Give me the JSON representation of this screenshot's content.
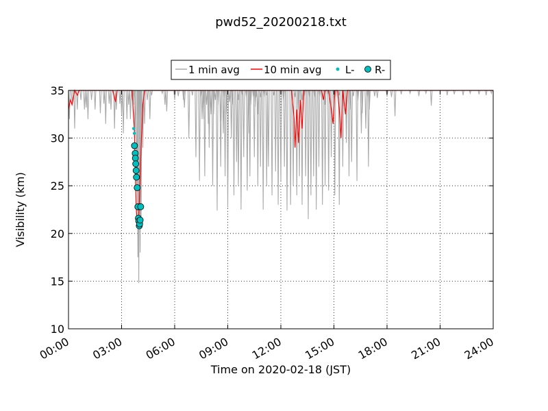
{
  "chart_data": {
    "type": "line",
    "title": "pwd52_20200218.txt",
    "xlabel": "Time on 2020-02-18 (JST)",
    "ylabel": "Visibility (km)",
    "xlim_hours": [
      0,
      24
    ],
    "ylim": [
      10,
      35
    ],
    "x_ticks": [
      "00:00",
      "03:00",
      "06:00",
      "09:00",
      "12:00",
      "15:00",
      "18:00",
      "21:00",
      "24:00"
    ],
    "x_tick_hours": [
      0,
      3,
      6,
      9,
      12,
      15,
      18,
      21,
      24
    ],
    "y_ticks": [
      10,
      15,
      20,
      25,
      30,
      35
    ],
    "grid": true,
    "legend_position": "top-center",
    "legend": [
      "1 min avg",
      "10 min avg",
      "L-",
      "R-"
    ],
    "colors": {
      "one_min": "#a9a9a9",
      "ten_min": "#ff0000",
      "L": "#00bfbf",
      "R": "#00bfbf"
    },
    "series": [
      {
        "name": "1 min avg",
        "note": "dips from 35 km ceiling (hour, minimum visibility km)",
        "dips": [
          [
            0.05,
            32
          ],
          [
            0.2,
            33.5
          ],
          [
            0.35,
            31
          ],
          [
            0.5,
            33
          ],
          [
            0.7,
            34
          ],
          [
            0.9,
            33
          ],
          [
            1.0,
            33.2
          ],
          [
            1.1,
            32
          ],
          [
            1.3,
            34
          ],
          [
            1.5,
            33
          ],
          [
            1.8,
            32.6
          ],
          [
            2.0,
            33.6
          ],
          [
            2.1,
            31.5
          ],
          [
            2.3,
            33.6
          ],
          [
            2.4,
            33
          ],
          [
            2.6,
            31
          ],
          [
            2.7,
            33
          ],
          [
            2.9,
            33.6
          ],
          [
            3.0,
            32.4
          ],
          [
            3.1,
            30.5
          ],
          [
            3.3,
            32
          ],
          [
            3.4,
            33.5
          ],
          [
            3.5,
            32
          ],
          [
            3.6,
            34
          ],
          [
            3.7,
            33.5
          ],
          [
            3.75,
            30
          ],
          [
            3.85,
            25
          ],
          [
            3.92,
            17.5
          ],
          [
            3.97,
            14.8
          ],
          [
            4.05,
            18
          ],
          [
            4.1,
            20.5
          ],
          [
            4.2,
            29
          ],
          [
            4.3,
            31.5
          ],
          [
            4.45,
            34
          ],
          [
            4.6,
            32
          ],
          [
            4.7,
            34.5
          ],
          [
            5.3,
            34.7
          ],
          [
            5.45,
            33.5
          ],
          [
            5.55,
            32.8
          ],
          [
            6.0,
            34
          ],
          [
            6.2,
            34.4
          ],
          [
            6.5,
            34
          ],
          [
            6.55,
            33.2
          ],
          [
            7.0,
            34.5
          ],
          [
            7.5,
            34.4
          ],
          [
            7.65,
            32
          ],
          [
            7.8,
            33.5
          ],
          [
            7.9,
            31.5
          ],
          [
            8.05,
            32.5
          ],
          [
            8.2,
            32.5
          ],
          [
            8.3,
            34
          ],
          [
            8.45,
            33.5
          ],
          [
            8.6,
            31.8
          ],
          [
            8.75,
            30.5
          ],
          [
            8.8,
            34
          ],
          [
            8.95,
            32.5
          ],
          [
            9.1,
            33.8
          ],
          [
            9.25,
            33.5
          ],
          [
            9.6,
            34
          ],
          [
            9.8,
            34.5
          ],
          [
            10.05,
            34.3
          ],
          [
            10.2,
            30.5
          ],
          [
            10.3,
            33.5
          ],
          [
            10.45,
            34.3
          ],
          [
            10.55,
            33.3
          ],
          [
            10.6,
            34.3
          ],
          [
            10.7,
            32.5
          ],
          [
            10.85,
            34.3
          ],
          [
            11.05,
            34.3
          ],
          [
            11.2,
            34.5
          ],
          [
            11.6,
            34.5
          ],
          [
            12.15,
            34
          ],
          [
            12.8,
            34.3
          ],
          [
            13.0,
            33
          ],
          [
            13.2,
            34
          ],
          [
            13.35,
            34.4
          ],
          [
            13.6,
            34.3
          ],
          [
            13.9,
            34.3
          ],
          [
            14.2,
            34.3
          ],
          [
            14.5,
            33.5
          ],
          [
            14.65,
            34.5
          ],
          [
            15.0,
            33.5
          ],
          [
            15.1,
            34.3
          ],
          [
            15.3,
            34.5
          ],
          [
            15.55,
            33.4
          ],
          [
            15.7,
            32
          ],
          [
            15.9,
            33
          ],
          [
            16.1,
            34.4
          ],
          [
            16.35,
            33.9
          ],
          [
            16.6,
            32.6
          ],
          [
            16.9,
            34.4
          ],
          [
            17.0,
            33
          ],
          [
            17.3,
            34.4
          ],
          [
            17.45,
            34.2
          ],
          [
            18.0,
            34.4
          ],
          [
            18.25,
            34.3
          ],
          [
            18.45,
            32.3
          ],
          [
            18.8,
            34.6
          ],
          [
            19.3,
            34.7
          ],
          [
            19.8,
            34.4
          ],
          [
            20.2,
            34.7
          ],
          [
            20.5,
            33.4
          ],
          [
            21.4,
            34.5
          ],
          [
            21.8,
            34.6
          ],
          [
            22.3,
            34.5
          ],
          [
            22.7,
            34.7
          ],
          [
            23.2,
            34.6
          ],
          [
            23.6,
            34.5
          ],
          [
            23.9,
            34.7
          ]
        ],
        "deep_dips": [
          [
            6.8,
            30
          ],
          [
            7.2,
            28
          ],
          [
            7.4,
            25.5
          ],
          [
            7.55,
            32
          ],
          [
            7.7,
            26
          ],
          [
            7.95,
            29
          ],
          [
            8.15,
            25
          ],
          [
            8.4,
            22.4
          ],
          [
            8.6,
            27
          ],
          [
            8.85,
            26
          ],
          [
            9.0,
            22.7
          ],
          [
            9.2,
            30
          ],
          [
            9.35,
            24
          ],
          [
            9.5,
            27.5
          ],
          [
            9.6,
            25
          ],
          [
            9.75,
            22.5
          ],
          [
            9.9,
            28
          ],
          [
            10.1,
            24.5
          ],
          [
            10.25,
            26
          ],
          [
            10.5,
            28
          ],
          [
            10.7,
            25
          ],
          [
            10.85,
            27
          ],
          [
            11.0,
            22.5
          ],
          [
            11.2,
            25
          ],
          [
            11.3,
            27
          ],
          [
            11.5,
            24
          ],
          [
            11.7,
            26.5
          ],
          [
            11.85,
            23
          ],
          [
            12.0,
            25.5
          ],
          [
            12.2,
            27
          ],
          [
            12.35,
            22.4
          ],
          [
            12.55,
            23
          ],
          [
            12.7,
            25
          ],
          [
            12.9,
            24
          ],
          [
            13.05,
            26
          ],
          [
            13.2,
            23
          ],
          [
            13.4,
            26
          ],
          [
            13.55,
            21.5
          ],
          [
            13.7,
            24
          ],
          [
            13.85,
            26
          ],
          [
            14.0,
            22.5
          ],
          [
            14.15,
            27
          ],
          [
            14.35,
            23
          ],
          [
            14.5,
            25
          ],
          [
            14.7,
            24.5
          ],
          [
            14.85,
            28
          ],
          [
            15.05,
            24
          ],
          [
            15.3,
            23
          ],
          [
            15.5,
            27
          ],
          [
            15.7,
            29.5
          ],
          [
            15.85,
            26
          ],
          [
            16.0,
            27.5
          ],
          [
            16.3,
            25.5
          ],
          [
            16.55,
            30.5
          ],
          [
            16.8,
            31
          ],
          [
            16.95,
            27
          ]
        ]
      },
      {
        "name": "10 min avg",
        "points": [
          [
            0.0,
            33
          ],
          [
            0.1,
            34
          ],
          [
            0.2,
            33.5
          ],
          [
            0.35,
            35
          ],
          [
            0.5,
            34.5
          ],
          [
            0.6,
            35
          ],
          [
            2.5,
            35
          ],
          [
            2.65,
            33.8
          ],
          [
            2.75,
            35
          ],
          [
            3.6,
            35
          ],
          [
            3.65,
            33
          ],
          [
            3.72,
            31
          ],
          [
            3.78,
            26
          ],
          [
            3.82,
            23
          ],
          [
            3.88,
            21
          ],
          [
            3.95,
            21
          ],
          [
            4.0,
            22.8
          ],
          [
            4.05,
            26
          ],
          [
            4.1,
            29
          ],
          [
            4.15,
            31
          ],
          [
            4.2,
            33.5
          ],
          [
            4.3,
            35
          ],
          [
            12.6,
            35
          ],
          [
            12.75,
            32
          ],
          [
            12.8,
            29
          ],
          [
            12.9,
            33
          ],
          [
            13.0,
            29.5
          ],
          [
            13.1,
            34
          ],
          [
            13.2,
            31
          ],
          [
            13.3,
            35
          ],
          [
            14.3,
            35
          ],
          [
            14.4,
            34
          ],
          [
            14.5,
            35
          ],
          [
            14.7,
            35
          ],
          [
            14.85,
            33
          ],
          [
            14.95,
            31.5
          ],
          [
            15.05,
            35
          ],
          [
            15.2,
            35
          ],
          [
            15.3,
            33
          ],
          [
            15.4,
            30
          ],
          [
            15.5,
            35
          ],
          [
            15.65,
            32.5
          ],
          [
            15.75,
            35
          ],
          [
            16.3,
            35
          ],
          [
            24,
            35
          ]
        ]
      },
      {
        "name": "L-",
        "points": [
          [
            3.68,
            31.0
          ],
          [
            3.72,
            30.5
          ]
        ]
      },
      {
        "name": "R-",
        "points": [
          [
            3.73,
            29.2
          ],
          [
            3.77,
            28.4
          ],
          [
            3.78,
            27.9
          ],
          [
            3.8,
            27.3
          ],
          [
            3.82,
            26.6
          ],
          [
            3.84,
            25.9
          ],
          [
            3.88,
            24.8
          ],
          [
            3.92,
            22.8
          ],
          [
            3.95,
            21.6
          ],
          [
            3.97,
            21.3
          ],
          [
            4.0,
            20.8
          ],
          [
            4.02,
            21.0
          ],
          [
            4.05,
            21.4
          ],
          [
            4.08,
            22.8
          ]
        ]
      }
    ]
  }
}
